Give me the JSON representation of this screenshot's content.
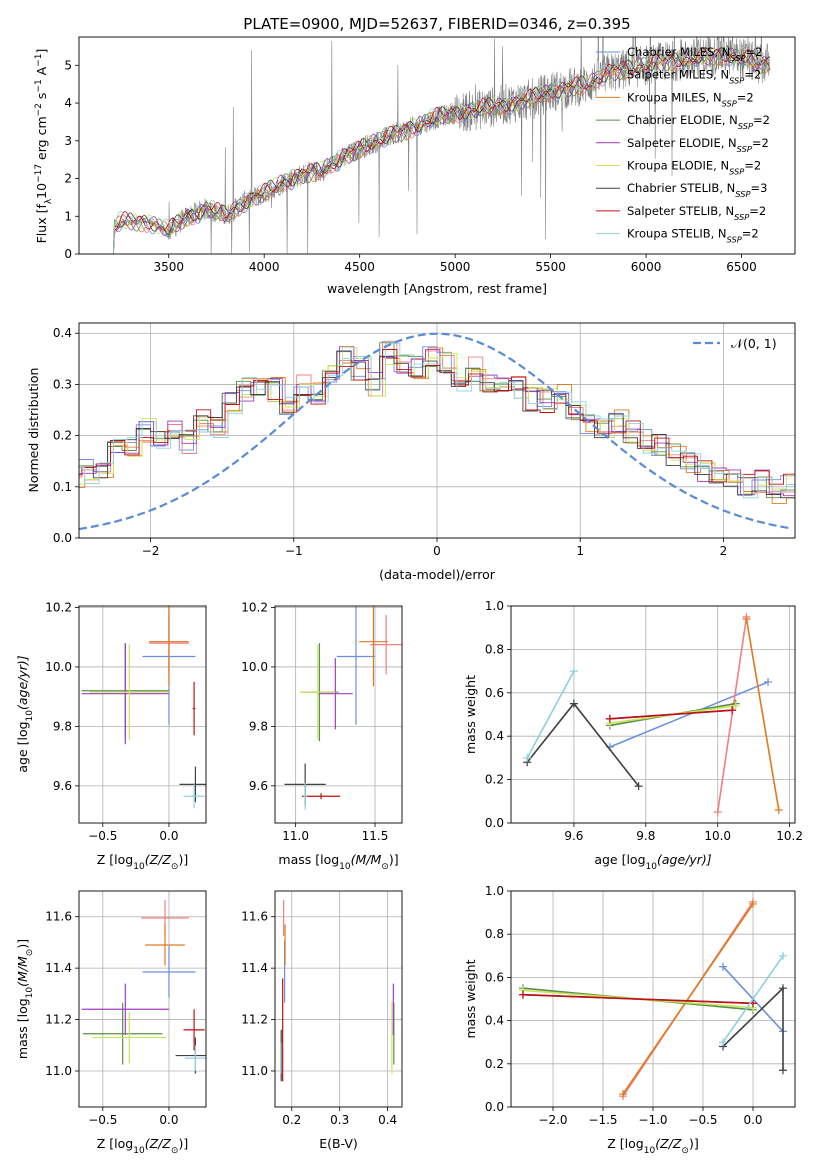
{
  "figure": {
    "title": "PLATE=0900, MJD=52637, FIBERID=0346, z=0.395",
    "series": [
      {
        "name": "Chabrier MILES, N",
        "sub": "SSP",
        "suffix": "=2",
        "color": "#6a8fde"
      },
      {
        "name": "Salpeter MILES, N",
        "sub": "SSP",
        "suffix": "=2",
        "color": "#f08080"
      },
      {
        "name": "Kroupa MILES, N",
        "sub": "SSP",
        "suffix": "=2",
        "color": "#e07a1e"
      },
      {
        "name": "Chabrier ELODIE, N",
        "sub": "SSP",
        "suffix": "=2",
        "color": "#5a8f4a"
      },
      {
        "name": "Salpeter ELODIE, N",
        "sub": "SSP",
        "suffix": "=2",
        "color": "#a13cc4"
      },
      {
        "name": "Kroupa ELODIE, N",
        "sub": "SSP",
        "suffix": "=2",
        "color": "#c8e65a"
      },
      {
        "name": "Chabrier STELIB, N",
        "sub": "SSP",
        "suffix": "=3",
        "color": "#404040"
      },
      {
        "name": "Salpeter STELIB, N",
        "sub": "SSP",
        "suffix": "=2",
        "color": "#c01010"
      },
      {
        "name": "Kroupa STELIB, N",
        "sub": "SSP",
        "suffix": "=2",
        "color": "#8fd0e0"
      }
    ]
  },
  "chart_data": [
    {
      "id": "spectrum",
      "type": "line",
      "title": "PLATE=0900, MJD=52637, FIBERID=0346, z=0.395",
      "xlabel": "wavelength [Angstrom, rest frame]",
      "ylabel": "Flux [f",
      "ylabel_parts": {
        "sub": "λ",
        "mid": "10",
        "sup1": "−17",
        "mid2": " erg cm",
        "sup2": "−2",
        "mid3": " s",
        "sup3": "−1",
        "mid4": " A",
        "sup4": "−1",
        "end": "]"
      },
      "xlim": [
        3030,
        6780
      ],
      "ylim": [
        0,
        5.75
      ],
      "xticks": [
        3500,
        4000,
        4500,
        5000,
        5500,
        6000,
        6500
      ],
      "yticks": [
        0,
        1,
        2,
        3,
        4,
        5
      ],
      "grid": false,
      "legend": "top-right",
      "data_color": "#808080",
      "model_anchors": [
        [
          3210,
          0
        ],
        [
          3215,
          0.7
        ],
        [
          3250,
          0.85
        ],
        [
          3400,
          0.85
        ],
        [
          3500,
          0.6
        ],
        [
          3600,
          1.0
        ],
        [
          3700,
          1.2
        ],
        [
          3800,
          1.0
        ],
        [
          3900,
          1.4
        ],
        [
          4000,
          1.6
        ],
        [
          4100,
          1.9
        ],
        [
          4200,
          2.1
        ],
        [
          4300,
          2.2
        ],
        [
          4400,
          2.5
        ],
        [
          4500,
          2.8
        ],
        [
          4600,
          3.0
        ],
        [
          4700,
          3.2
        ],
        [
          4800,
          3.4
        ],
        [
          4900,
          3.6
        ],
        [
          5000,
          3.75
        ],
        [
          5100,
          3.8
        ],
        [
          5200,
          3.9
        ],
        [
          5300,
          4.0
        ],
        [
          5400,
          4.1
        ],
        [
          5500,
          4.3
        ],
        [
          5600,
          4.4
        ],
        [
          5700,
          4.5
        ],
        [
          5800,
          4.8
        ],
        [
          5900,
          4.9
        ],
        [
          6000,
          5.0
        ],
        [
          6100,
          5.1
        ],
        [
          6200,
          5.15
        ],
        [
          6300,
          5.2
        ],
        [
          6400,
          5.3
        ],
        [
          6500,
          5.2
        ],
        [
          6600,
          5.0
        ],
        [
          6650,
          5.1
        ]
      ]
    },
    {
      "id": "residuals",
      "type": "line",
      "xlabel": "(data-model)/error",
      "ylabel": "Normed distribution",
      "xlim": [
        -2.5,
        2.5
      ],
      "ylim": [
        0,
        0.42
      ],
      "xticks": [
        -2,
        -1,
        0,
        1,
        2
      ],
      "yticks": [
        0.0,
        0.1,
        0.2,
        0.3,
        0.4
      ],
      "ytick_labels": [
        "0.0",
        "0.1",
        "0.2",
        "0.3",
        "0.4"
      ],
      "grid": true,
      "legend": "top-right",
      "gaussian_label": "𝒩(0, 1)",
      "gaussian_color": "#5b8ad6",
      "bin_width": 0.1,
      "base_hist": [
        0.04,
        0.04,
        0.06,
        0.05,
        0.07,
        0.06,
        0.08,
        0.1,
        0.1,
        0.12,
        0.13,
        0.14,
        0.17,
        0.18,
        0.21,
        0.2,
        0.21,
        0.19,
        0.23,
        0.22,
        0.26,
        0.29,
        0.3,
        0.29,
        0.26,
        0.3,
        0.28,
        0.32,
        0.35,
        0.33,
        0.3,
        0.36,
        0.34,
        0.33,
        0.35,
        0.34,
        0.3,
        0.33,
        0.31,
        0.3,
        0.29,
        0.27,
        0.27,
        0.28,
        0.25,
        0.22,
        0.21,
        0.23,
        0.21,
        0.19,
        0.18,
        0.16,
        0.15,
        0.13,
        0.12,
        0.12,
        0.1,
        0.11,
        0.09,
        0.1,
        0.08,
        0.08,
        0.07,
        0.08,
        0.06,
        0.07,
        0.07,
        0.05,
        0.06,
        0.05
      ]
    },
    {
      "id": "age-vs-Z",
      "type": "scatter",
      "xlabel": "Z [log",
      "xlabel_sub": "10",
      "xlabel_tail": "(Z/Z",
      "xlabel_end": ")]",
      "ylabel": "age  [log",
      "ylabel_sub": "10",
      "ylabel_tail": "(age/yr)]",
      "xlim": [
        -0.68,
        0.28
      ],
      "ylim": [
        9.475,
        10.205
      ],
      "xticks": [
        -0.5,
        0.0
      ],
      "xtick_labels": [
        "−0.5",
        "0.0"
      ],
      "yticks": [
        9.6,
        9.8,
        10.0,
        10.2
      ],
      "ytick_labels": [
        "9.6",
        "9.8",
        "10.0",
        "10.2"
      ],
      "grid": true,
      "points": [
        {
          "s": 0,
          "x": 0.0,
          "y": 10.035,
          "xe": 0.2,
          "ye": 0.23
        },
        {
          "s": 1,
          "x": 0.0,
          "y": 10.08,
          "xe": 0.15,
          "ye": 0.1
        },
        {
          "s": 2,
          "x": 0.0,
          "y": 10.085,
          "xe": 0.15,
          "ye": 0.15
        },
        {
          "s": 3,
          "x": -0.33,
          "y": 9.92,
          "xe": 0.33,
          "ye": 0.16
        },
        {
          "s": 4,
          "x": -0.33,
          "y": 9.91,
          "xe": 0.33,
          "ye": 0.17
        },
        {
          "s": 5,
          "x": -0.3,
          "y": 9.915,
          "xe": 0.3,
          "ye": 0.16
        },
        {
          "s": 6,
          "x": 0.2,
          "y": 9.605,
          "xe": 0.12,
          "ye": 0.06
        },
        {
          "s": 7,
          "x": 0.19,
          "y": 9.86,
          "xe": 0.01,
          "ye": 0.09
        },
        {
          "s": 8,
          "x": 0.19,
          "y": 9.565,
          "xe": 0.08,
          "ye": 0.04
        }
      ]
    },
    {
      "id": "age-vs-mass",
      "type": "scatter",
      "xlabel": "mass [log",
      "xlabel_sub": "10",
      "xlabel_tail": "(M/M",
      "xlabel_end": ")]",
      "xlim": [
        10.87,
        11.67
      ],
      "ylim": [
        9.475,
        10.205
      ],
      "xticks": [
        11.0,
        11.5
      ],
      "xtick_labels": [
        "11.0",
        "11.5"
      ],
      "yticks": [
        9.6,
        9.8,
        10.0,
        10.2
      ],
      "ytick_labels": [
        "9.6",
        "9.8",
        "10.0",
        "10.2"
      ],
      "grid": true,
      "points": [
        {
          "s": 0,
          "x": 11.38,
          "y": 10.035,
          "xe": 0.12,
          "ye": 0.23
        },
        {
          "s": 1,
          "x": 11.57,
          "y": 10.075,
          "xe": 0.1,
          "ye": 0.1
        },
        {
          "s": 2,
          "x": 11.49,
          "y": 10.085,
          "xe": 0.09,
          "ye": 0.15
        },
        {
          "s": 3,
          "x": 11.15,
          "y": 9.915,
          "xe": 0.12,
          "ye": 0.165
        },
        {
          "s": 4,
          "x": 11.25,
          "y": 9.91,
          "xe": 0.11,
          "ye": 0.12
        },
        {
          "s": 5,
          "x": 11.14,
          "y": 9.915,
          "xe": 0.11,
          "ye": 0.16
        },
        {
          "s": 6,
          "x": 11.06,
          "y": 9.605,
          "xe": 0.13,
          "ye": 0.07
        },
        {
          "s": 7,
          "x": 11.16,
          "y": 9.565,
          "xe": 0.12,
          "ye": 0.01
        },
        {
          "s": 8,
          "x": 11.06,
          "y": 9.565,
          "xe": 0.01,
          "ye": 0.045
        }
      ]
    },
    {
      "id": "weight-vs-age",
      "type": "line",
      "xlabel": "age  [log",
      "xlabel_sub": "10",
      "xlabel_tail": "(age/yr)]",
      "ylabel": "mass weight",
      "xlim": [
        9.425,
        10.215
      ],
      "ylim": [
        0,
        1
      ],
      "xticks": [
        9.6,
        9.8,
        10.0,
        10.2
      ],
      "xtick_labels": [
        "9.6",
        "9.8",
        "10.0",
        "10.2"
      ],
      "yticks": [
        0.0,
        0.2,
        0.4,
        0.6,
        0.8,
        1.0
      ],
      "ytick_labels": [
        "0.0",
        "0.2",
        "0.4",
        "0.6",
        "0.8",
        "1.0"
      ],
      "grid": true,
      "lines": [
        {
          "s": 0,
          "pts": [
            [
              9.7,
              0.35
            ],
            [
              10.14,
              0.65
            ]
          ]
        },
        {
          "s": 1,
          "pts": [
            [
              10.0,
              0.05
            ],
            [
              10.08,
              0.95
            ]
          ]
        },
        {
          "s": 2,
          "pts": [
            [
              10.08,
              0.94
            ],
            [
              10.17,
              0.06
            ]
          ]
        },
        {
          "s": 3,
          "pts": [
            [
              9.7,
              0.45
            ],
            [
              10.05,
              0.55
            ]
          ]
        },
        {
          "s": 4,
          "pts": [
            [
              9.7,
              0.48
            ],
            [
              10.04,
              0.52
            ]
          ]
        },
        {
          "s": 5,
          "pts": [
            [
              9.7,
              0.46
            ],
            [
              10.05,
              0.54
            ]
          ]
        },
        {
          "s": 6,
          "pts": [
            [
              9.47,
              0.28
            ],
            [
              9.6,
              0.55
            ],
            [
              9.78,
              0.17
            ]
          ]
        },
        {
          "s": 7,
          "pts": [
            [
              9.7,
              0.48
            ],
            [
              10.04,
              0.52
            ]
          ]
        },
        {
          "s": 8,
          "pts": [
            [
              9.47,
              0.3
            ],
            [
              9.6,
              0.7
            ]
          ]
        }
      ]
    },
    {
      "id": "mass-vs-Z",
      "type": "scatter",
      "xlabel": "Z [log",
      "xlabel_sub": "10",
      "xlabel_tail": "(Z/Z",
      "xlabel_end": ")]",
      "ylabel": "mass [log",
      "ylabel_sub": "10",
      "ylabel_tail": "(M/M",
      "ylabel_end": ")]",
      "xlim": [
        -0.68,
        0.28
      ],
      "ylim": [
        10.86,
        11.7
      ],
      "xticks": [
        -0.5,
        0.0
      ],
      "xtick_labels": [
        "−0.5",
        "0.0"
      ],
      "yticks": [
        11.0,
        11.2,
        11.4,
        11.6
      ],
      "ytick_labels": [
        "11.0",
        "11.2",
        "11.4",
        "11.6"
      ],
      "grid": true,
      "points": [
        {
          "s": 0,
          "x": 0.0,
          "y": 11.385,
          "xe": 0.2,
          "ye": 0.1
        },
        {
          "s": 1,
          "x": -0.03,
          "y": 11.595,
          "xe": 0.18,
          "ye": 0.07
        },
        {
          "s": 2,
          "x": -0.03,
          "y": 11.49,
          "xe": 0.15,
          "ye": 0.08
        },
        {
          "s": 3,
          "x": -0.35,
          "y": 11.145,
          "xe": 0.3,
          "ye": 0.12
        },
        {
          "s": 4,
          "x": -0.33,
          "y": 11.24,
          "xe": 0.33,
          "ye": 0.1
        },
        {
          "s": 5,
          "x": -0.3,
          "y": 11.13,
          "xe": 0.28,
          "ye": 0.1
        },
        {
          "s": 6,
          "x": 0.2,
          "y": 11.06,
          "xe": 0.15,
          "ye": 0.07
        },
        {
          "s": 7,
          "x": 0.19,
          "y": 11.16,
          "xe": 0.08,
          "ye": 0.08
        },
        {
          "s": 8,
          "x": 0.2,
          "y": 11.05,
          "xe": 0.08,
          "ye": 0.05
        }
      ]
    },
    {
      "id": "mass-vs-EBV",
      "type": "scatter",
      "xlabel": "E(B-V)",
      "xlim": [
        0.165,
        0.43
      ],
      "ylim": [
        10.86,
        11.7
      ],
      "xticks": [
        0.2,
        0.3,
        0.4
      ],
      "xtick_labels": [
        "0.2",
        "0.3",
        "0.4"
      ],
      "yticks": [
        11.0,
        11.2,
        11.4,
        11.6
      ],
      "ytick_labels": [
        "11.0",
        "11.2",
        "11.4",
        "11.6"
      ],
      "grid": true,
      "points": [
        {
          "s": 0,
          "x": 0.185,
          "y": 11.385,
          "xe": 0.001,
          "ye": 0.12
        },
        {
          "s": 1,
          "x": 0.183,
          "y": 11.595,
          "xe": 0.001,
          "ye": 0.07
        },
        {
          "s": 2,
          "x": 0.186,
          "y": 11.49,
          "xe": 0.001,
          "ye": 0.08
        },
        {
          "s": 3,
          "x": 0.413,
          "y": 11.145,
          "xe": 0.001,
          "ye": 0.12
        },
        {
          "s": 4,
          "x": 0.412,
          "y": 11.24,
          "xe": 0.001,
          "ye": 0.1
        },
        {
          "s": 5,
          "x": 0.409,
          "y": 11.13,
          "xe": 0.001,
          "ye": 0.14
        },
        {
          "s": 6,
          "x": 0.178,
          "y": 11.06,
          "xe": 0.001,
          "ye": 0.1
        },
        {
          "s": 7,
          "x": 0.181,
          "y": 11.16,
          "xe": 0.001,
          "ye": 0.2
        },
        {
          "s": 8,
          "x": 0.177,
          "y": 11.05,
          "xe": 0.001,
          "ye": 0.06
        }
      ]
    },
    {
      "id": "weight-vs-Z",
      "type": "line",
      "xlabel": "Z [log",
      "xlabel_sub": "10",
      "xlabel_tail": "(Z/Z",
      "xlabel_end": ")]",
      "ylabel": "mass weight",
      "xlim": [
        -2.42,
        0.42
      ],
      "ylim": [
        0,
        1
      ],
      "xticks": [
        -2.0,
        -1.5,
        -1.0,
        -0.5,
        0.0
      ],
      "xtick_labels": [
        "−2.0",
        "−1.5",
        "−1.0",
        "−0.5",
        "0.0"
      ],
      "yticks": [
        0.0,
        0.2,
        0.4,
        0.6,
        0.8,
        1.0
      ],
      "ytick_labels": [
        "0.0",
        "0.2",
        "0.4",
        "0.6",
        "0.8",
        "1.0"
      ],
      "grid": true,
      "lines": [
        {
          "s": 0,
          "pts": [
            [
              -0.3,
              0.65
            ],
            [
              0.3,
              0.35
            ]
          ]
        },
        {
          "s": 1,
          "pts": [
            [
              -1.3,
              0.05
            ],
            [
              0.0,
              0.95
            ]
          ]
        },
        {
          "s": 2,
          "pts": [
            [
              -1.3,
              0.06
            ],
            [
              0.0,
              0.94
            ]
          ]
        },
        {
          "s": 3,
          "pts": [
            [
              -2.3,
              0.55
            ],
            [
              0.0,
              0.45
            ]
          ]
        },
        {
          "s": 4,
          "pts": [
            [
              -2.3,
              0.52
            ],
            [
              0.0,
              0.48
            ]
          ]
        },
        {
          "s": 5,
          "pts": [
            [
              -2.3,
              0.54
            ],
            [
              0.0,
              0.46
            ]
          ]
        },
        {
          "s": 6,
          "pts": [
            [
              -0.3,
              0.28
            ],
            [
              0.3,
              0.55
            ],
            [
              0.3,
              0.17
            ]
          ]
        },
        {
          "s": 7,
          "pts": [
            [
              -2.3,
              0.52
            ],
            [
              0.0,
              0.48
            ]
          ]
        },
        {
          "s": 8,
          "pts": [
            [
              -0.3,
              0.3
            ],
            [
              0.3,
              0.7
            ]
          ]
        }
      ]
    }
  ]
}
